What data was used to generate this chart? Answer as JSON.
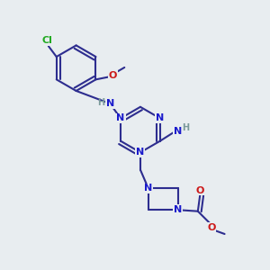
{
  "background_color": "#e8edf0",
  "bond_color": "#2d2d8f",
  "bond_width": 1.5,
  "atom_colors": {
    "N": "#1a1acc",
    "O": "#cc1a1a",
    "Cl": "#22aa22",
    "C": "#2d2d8f",
    "H": "#7a9a9a"
  }
}
